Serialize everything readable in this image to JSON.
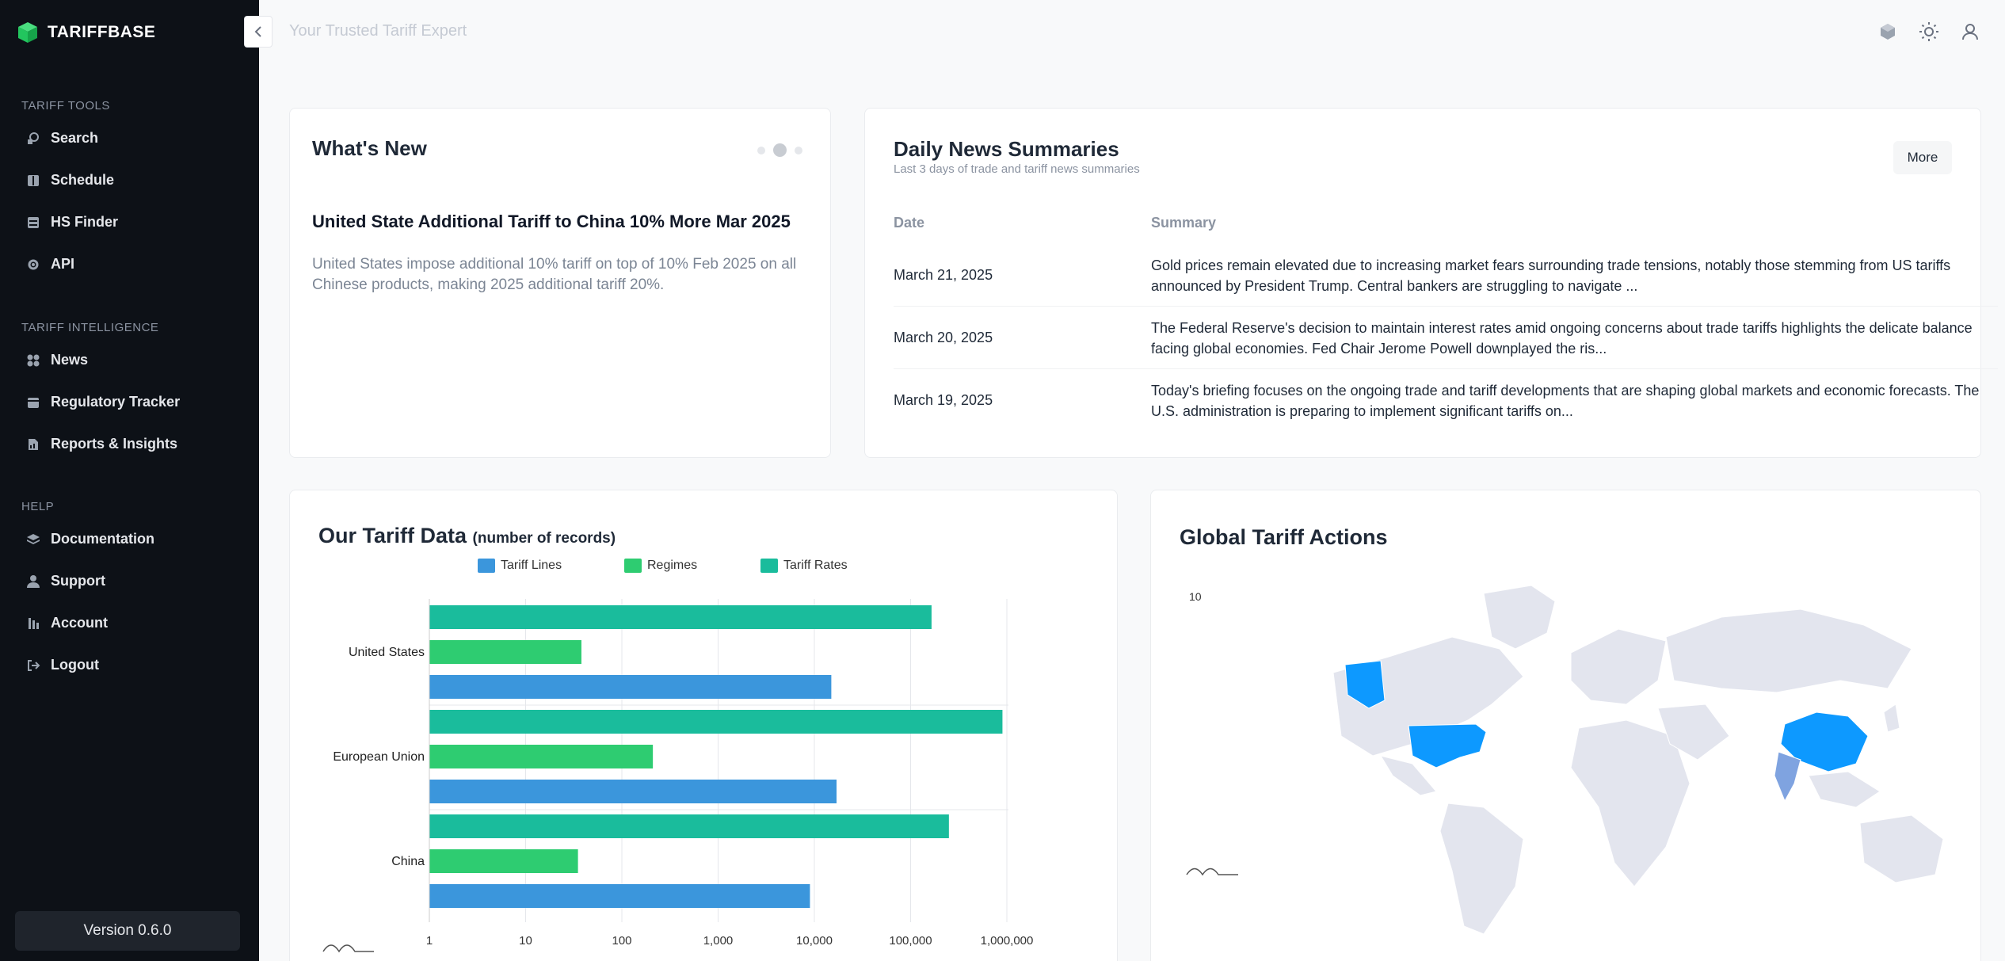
{
  "app": {
    "name": "TARIFFBASE",
    "tagline": "Your Trusted Tariff Expert",
    "version": "Version 0.6.0"
  },
  "sidebar": {
    "sections": [
      {
        "heading": "TARIFF TOOLS",
        "items": [
          {
            "label": "Search",
            "icon": "search-icon"
          },
          {
            "label": "Schedule",
            "icon": "book-icon"
          },
          {
            "label": "HS Finder",
            "icon": "database-icon"
          },
          {
            "label": "API",
            "icon": "gear-icon"
          }
        ]
      },
      {
        "heading": "TARIFF INTELLIGENCE",
        "items": [
          {
            "label": "News",
            "icon": "grid-icon"
          },
          {
            "label": "Regulatory Tracker",
            "icon": "calendar-icon"
          },
          {
            "label": "Reports & Insights",
            "icon": "report-icon"
          }
        ]
      },
      {
        "heading": "HELP",
        "items": [
          {
            "label": "Documentation",
            "icon": "layers-icon"
          },
          {
            "label": "Support",
            "icon": "user-support-icon"
          },
          {
            "label": "Account",
            "icon": "account-icon"
          },
          {
            "label": "Logout",
            "icon": "logout-icon"
          }
        ]
      }
    ]
  },
  "whats_new": {
    "title": "What's New",
    "headline": "United State Additional Tariff to China 10% More Mar 2025",
    "body": "United States impose additional 10% tariff on top of 10% Feb 2025 on all Chinese products, making 2025 additional tariff 20%."
  },
  "news": {
    "title": "Daily News Summaries",
    "subtitle": "Last 3 days of trade and tariff news summaries",
    "more_label": "More",
    "columns": [
      "Date",
      "Summary"
    ],
    "rows": [
      {
        "date": "March 21, 2025",
        "summary": "Gold prices remain elevated due to increasing market fears surrounding trade tensions, notably those stemming from US tariffs announced by President Trump. Central bankers are struggling to navigate ..."
      },
      {
        "date": "March 20, 2025",
        "summary": "The Federal Reserve's decision to maintain interest rates amid ongoing concerns about trade tariffs highlights the delicate balance facing global economies. Fed Chair Jerome Powell downplayed the ris..."
      },
      {
        "date": "March 19, 2025",
        "summary": "Today's briefing focuses on the ongoing trade and tariff developments that are shaping global markets and economic forecasts. The U.S. administration is preparing to implement significant tariffs on..."
      }
    ]
  },
  "tariff_chart": {
    "title": "Our Tariff Data",
    "subtitle": "(number of records)"
  },
  "map": {
    "title": "Global Tariff Actions",
    "scale_label": "10",
    "highlight_color": "#0d99ff",
    "base_color": "#e3e5ee"
  },
  "chart_data": {
    "type": "bar",
    "orientation": "horizontal",
    "categories": [
      "United States",
      "European Union",
      "China"
    ],
    "series": [
      {
        "name": "Tariff Lines",
        "color": "#3b96dc",
        "values": [
          15000,
          17000,
          9000
        ]
      },
      {
        "name": "Regimes",
        "color": "#2ecc71",
        "values": [
          38,
          210,
          35
        ]
      },
      {
        "name": "Tariff Rates",
        "color": "#1abc9c",
        "values": [
          165000,
          900000,
          250000
        ]
      }
    ],
    "x_scale": "log",
    "x_ticks": [
      "1",
      "10",
      "100",
      "1,000",
      "10,000",
      "100,000",
      "1,000,000"
    ],
    "xlim": [
      1,
      1000000
    ],
    "legend_position": "top"
  }
}
